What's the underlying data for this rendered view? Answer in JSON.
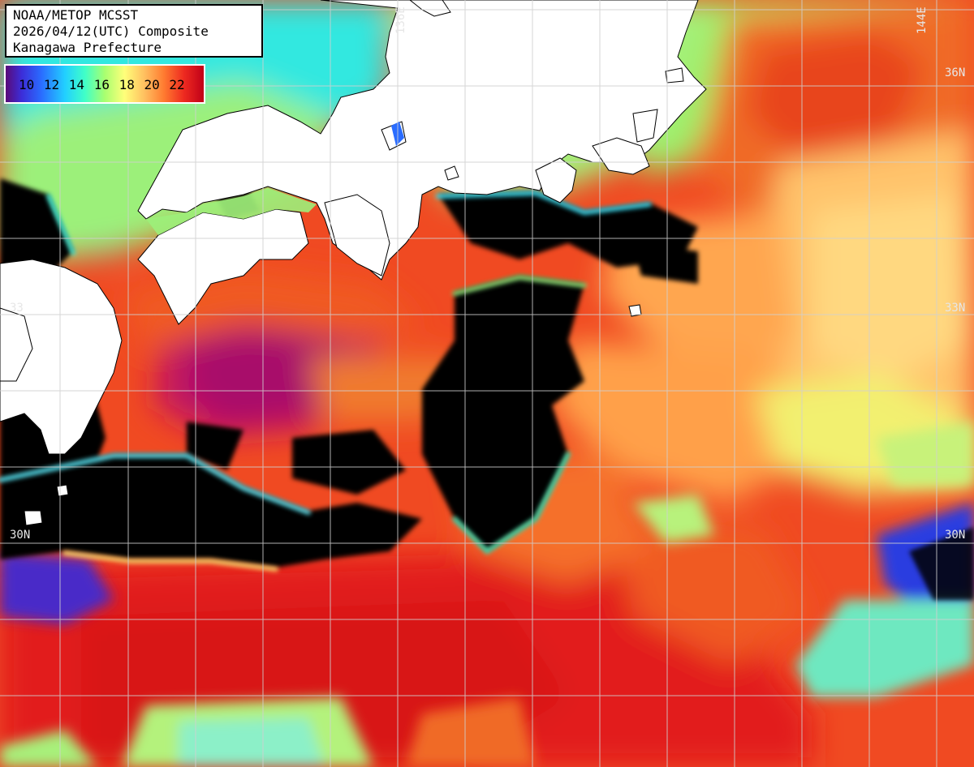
{
  "title": {
    "line1": "NOAA/METOP MCSST",
    "line2": "2026/04/12(UTC) Composite",
    "line3": "Kanagawa Prefecture"
  },
  "legend": {
    "labels": "10 12 14 16 18 20 22",
    "values": [
      10,
      12,
      14,
      16,
      18,
      20,
      22
    ],
    "colors": [
      "#5a0a78",
      "#2a6cff",
      "#22d0ff",
      "#a8ff70",
      "#ffff7a",
      "#ff7a30",
      "#c00018"
    ]
  },
  "grid_labels": {
    "lon_136": "136E",
    "lon_144": "144E",
    "lat_36_right": "36N",
    "lat_33_right": "33N",
    "lat_33_left": "33",
    "lat_30_left": "30N",
    "lat_30_right": "30N"
  },
  "colors": {
    "land": "#ffffff",
    "cloud": "#000000",
    "grid": "#d8d8d8"
  }
}
